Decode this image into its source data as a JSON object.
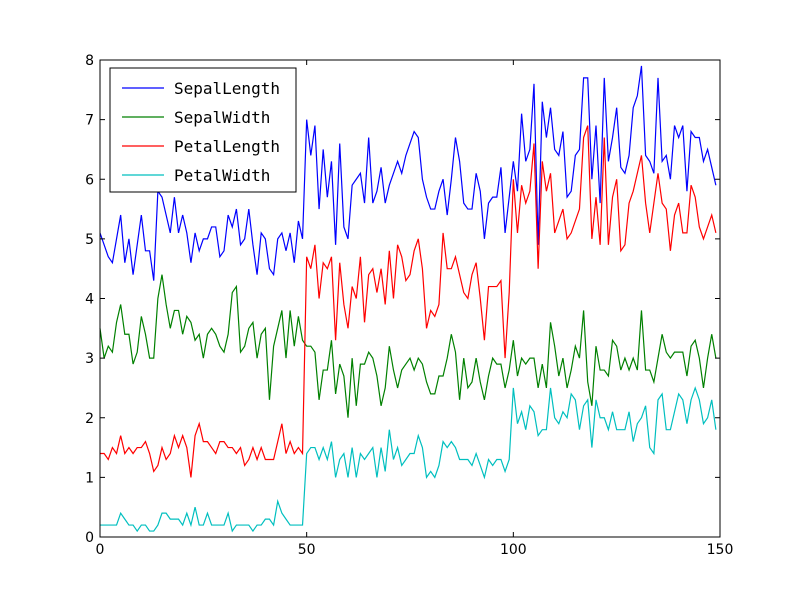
{
  "chart_data": {
    "type": "line",
    "xlim": [
      0,
      150
    ],
    "ylim": [
      0,
      8
    ],
    "xticks": [
      0,
      50,
      100,
      150
    ],
    "yticks": [
      0,
      1,
      2,
      3,
      4,
      5,
      6,
      7,
      8
    ],
    "grid": false,
    "legend_position": "top-left",
    "series": [
      {
        "name": "SepalLength",
        "color": "#0000ff",
        "values": [
          5.1,
          4.9,
          4.7,
          4.6,
          5.0,
          5.4,
          4.6,
          5.0,
          4.4,
          4.9,
          5.4,
          4.8,
          4.8,
          4.3,
          5.8,
          5.7,
          5.4,
          5.1,
          5.7,
          5.1,
          5.4,
          5.1,
          4.6,
          5.1,
          4.8,
          5.0,
          5.0,
          5.2,
          5.2,
          4.7,
          4.8,
          5.4,
          5.2,
          5.5,
          4.9,
          5.0,
          5.5,
          4.9,
          4.4,
          5.1,
          5.0,
          4.5,
          4.4,
          5.0,
          5.1,
          4.8,
          5.1,
          4.6,
          5.3,
          5.0,
          7.0,
          6.4,
          6.9,
          5.5,
          6.5,
          5.7,
          6.3,
          4.9,
          6.6,
          5.2,
          5.0,
          5.9,
          6.0,
          6.1,
          5.6,
          6.7,
          5.6,
          5.8,
          6.2,
          5.6,
          5.9,
          6.1,
          6.3,
          6.1,
          6.4,
          6.6,
          6.8,
          6.7,
          6.0,
          5.7,
          5.5,
          5.5,
          5.8,
          6.0,
          5.4,
          6.0,
          6.7,
          6.3,
          5.6,
          5.5,
          5.5,
          6.1,
          5.8,
          5.0,
          5.6,
          5.7,
          5.7,
          6.2,
          5.1,
          5.7,
          6.3,
          5.8,
          7.1,
          6.3,
          6.5,
          7.6,
          4.9,
          7.3,
          6.7,
          7.2,
          6.5,
          6.4,
          6.8,
          5.7,
          5.8,
          6.4,
          6.5,
          7.7,
          7.7,
          6.0,
          6.9,
          5.6,
          7.7,
          6.3,
          6.7,
          7.2,
          6.2,
          6.1,
          6.4,
          7.2,
          7.4,
          7.9,
          6.4,
          6.3,
          6.1,
          7.7,
          6.3,
          6.4,
          6.0,
          6.9,
          6.7,
          6.9,
          5.8,
          6.8,
          6.7,
          6.7,
          6.3,
          6.5,
          6.2,
          5.9
        ]
      },
      {
        "name": "SepalWidth",
        "color": "#008000",
        "values": [
          3.5,
          3.0,
          3.2,
          3.1,
          3.6,
          3.9,
          3.4,
          3.4,
          2.9,
          3.1,
          3.7,
          3.4,
          3.0,
          3.0,
          4.0,
          4.4,
          3.9,
          3.5,
          3.8,
          3.8,
          3.4,
          3.7,
          3.6,
          3.3,
          3.4,
          3.0,
          3.4,
          3.5,
          3.4,
          3.2,
          3.1,
          3.4,
          4.1,
          4.2,
          3.1,
          3.2,
          3.5,
          3.6,
          3.0,
          3.4,
          3.5,
          2.3,
          3.2,
          3.5,
          3.8,
          3.0,
          3.8,
          3.2,
          3.7,
          3.3,
          3.2,
          3.2,
          3.1,
          2.3,
          2.8,
          2.8,
          3.3,
          2.4,
          2.9,
          2.7,
          2.0,
          3.0,
          2.2,
          2.9,
          2.9,
          3.1,
          3.0,
          2.7,
          2.2,
          2.5,
          3.2,
          2.8,
          2.5,
          2.8,
          2.9,
          3.0,
          2.8,
          3.0,
          2.9,
          2.6,
          2.4,
          2.4,
          2.7,
          2.7,
          3.0,
          3.4,
          3.1,
          2.3,
          3.0,
          2.5,
          2.6,
          3.0,
          2.6,
          2.3,
          2.7,
          3.0,
          2.9,
          2.9,
          2.5,
          2.8,
          3.3,
          2.7,
          3.0,
          2.9,
          3.0,
          3.0,
          2.5,
          2.9,
          2.5,
          3.6,
          3.2,
          2.7,
          3.0,
          2.5,
          2.8,
          3.2,
          3.0,
          3.8,
          2.6,
          2.2,
          3.2,
          2.8,
          2.8,
          2.7,
          3.3,
          3.2,
          2.8,
          3.0,
          2.8,
          3.0,
          2.8,
          3.8,
          2.8,
          2.8,
          2.6,
          3.0,
          3.4,
          3.1,
          3.0,
          3.1,
          3.1,
          3.1,
          2.7,
          3.2,
          3.3,
          3.0,
          2.5,
          3.0,
          3.4,
          3.0
        ]
      },
      {
        "name": "PetalLength",
        "color": "#ff0000",
        "values": [
          1.4,
          1.4,
          1.3,
          1.5,
          1.4,
          1.7,
          1.4,
          1.5,
          1.4,
          1.5,
          1.5,
          1.6,
          1.4,
          1.1,
          1.2,
          1.5,
          1.3,
          1.4,
          1.7,
          1.5,
          1.7,
          1.5,
          1.0,
          1.7,
          1.9,
          1.6,
          1.6,
          1.5,
          1.4,
          1.6,
          1.6,
          1.5,
          1.5,
          1.4,
          1.5,
          1.2,
          1.3,
          1.5,
          1.3,
          1.5,
          1.3,
          1.3,
          1.3,
          1.6,
          1.9,
          1.4,
          1.6,
          1.4,
          1.5,
          1.4,
          4.7,
          4.5,
          4.9,
          4.0,
          4.6,
          4.5,
          4.7,
          3.3,
          4.6,
          3.9,
          3.5,
          4.2,
          4.0,
          4.7,
          3.6,
          4.4,
          4.5,
          4.1,
          4.5,
          3.9,
          4.8,
          4.0,
          4.9,
          4.7,
          4.3,
          4.4,
          4.8,
          5.0,
          4.5,
          3.5,
          3.8,
          3.7,
          3.9,
          5.1,
          4.5,
          4.5,
          4.7,
          4.4,
          4.1,
          4.0,
          4.4,
          4.6,
          4.0,
          3.3,
          4.2,
          4.2,
          4.2,
          4.3,
          3.0,
          4.1,
          6.0,
          5.1,
          5.9,
          5.6,
          5.8,
          6.6,
          4.5,
          6.3,
          5.8,
          6.1,
          5.1,
          5.3,
          5.5,
          5.0,
          5.1,
          5.3,
          5.5,
          6.7,
          6.9,
          5.0,
          5.7,
          4.9,
          6.7,
          4.9,
          5.7,
          6.0,
          4.8,
          4.9,
          5.6,
          5.8,
          6.1,
          6.4,
          5.6,
          5.1,
          5.6,
          6.1,
          5.6,
          5.5,
          4.8,
          5.4,
          5.6,
          5.1,
          5.1,
          5.9,
          5.7,
          5.2,
          5.0,
          5.2,
          5.4,
          5.1
        ]
      },
      {
        "name": "PetalWidth",
        "color": "#00bfbf",
        "values": [
          0.2,
          0.2,
          0.2,
          0.2,
          0.2,
          0.4,
          0.3,
          0.2,
          0.2,
          0.1,
          0.2,
          0.2,
          0.1,
          0.1,
          0.2,
          0.4,
          0.4,
          0.3,
          0.3,
          0.3,
          0.2,
          0.4,
          0.2,
          0.5,
          0.2,
          0.2,
          0.4,
          0.2,
          0.2,
          0.2,
          0.2,
          0.4,
          0.1,
          0.2,
          0.2,
          0.2,
          0.2,
          0.1,
          0.2,
          0.2,
          0.3,
          0.3,
          0.2,
          0.6,
          0.4,
          0.3,
          0.2,
          0.2,
          0.2,
          0.2,
          1.4,
          1.5,
          1.5,
          1.3,
          1.5,
          1.3,
          1.6,
          1.0,
          1.3,
          1.4,
          1.0,
          1.5,
          1.0,
          1.4,
          1.3,
          1.4,
          1.5,
          1.0,
          1.5,
          1.1,
          1.8,
          1.3,
          1.5,
          1.2,
          1.3,
          1.4,
          1.4,
          1.7,
          1.5,
          1.0,
          1.1,
          1.0,
          1.2,
          1.6,
          1.5,
          1.6,
          1.5,
          1.3,
          1.3,
          1.3,
          1.2,
          1.4,
          1.2,
          1.0,
          1.3,
          1.2,
          1.3,
          1.3,
          1.1,
          1.3,
          2.5,
          1.9,
          2.1,
          1.8,
          2.2,
          2.1,
          1.7,
          1.8,
          1.8,
          2.5,
          2.0,
          1.9,
          2.1,
          2.0,
          2.4,
          2.3,
          1.8,
          2.2,
          2.3,
          1.5,
          2.3,
          2.0,
          2.0,
          1.8,
          2.1,
          1.8,
          1.8,
          1.8,
          2.1,
          1.6,
          1.9,
          2.0,
          2.2,
          1.5,
          1.4,
          2.3,
          2.4,
          1.8,
          1.8,
          2.1,
          2.4,
          2.3,
          1.9,
          2.3,
          2.5,
          2.3,
          1.9,
          2.0,
          2.3,
          1.8
        ]
      }
    ]
  }
}
